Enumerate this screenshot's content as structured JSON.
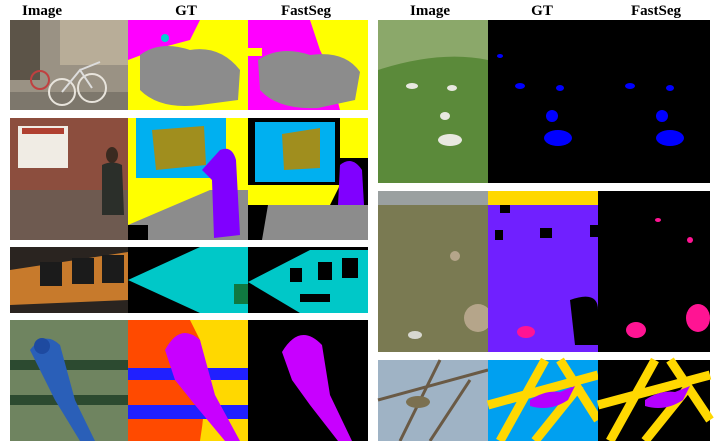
{
  "headers": {
    "left": [
      "Image",
      "GT",
      "FastSeg"
    ],
    "right": [
      "Image",
      "GT",
      "FastSeg"
    ]
  }
}
